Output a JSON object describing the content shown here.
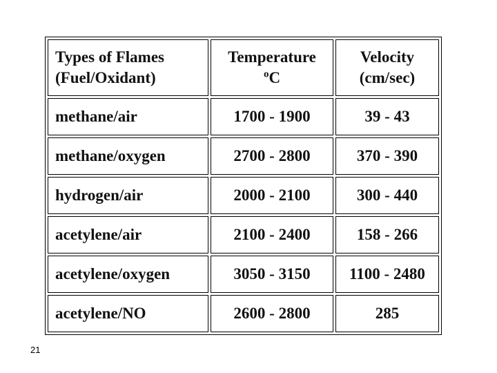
{
  "table": {
    "header": [
      {
        "line1": "Types of Flames",
        "line2": "(Fuel/Oxidant)"
      },
      {
        "line1": "Temperature",
        "sup": "o",
        "line2": "C"
      },
      {
        "line1": "Velocity",
        "line2": "(cm/sec)"
      }
    ],
    "rows": [
      [
        "methane/air",
        "1700 - 1900",
        "39 - 43"
      ],
      [
        "methane/oxygen",
        "2700 - 2800",
        "370 - 390"
      ],
      [
        "hydrogen/air",
        "2000 - 2100",
        "300 - 440"
      ],
      [
        "acetylene/air",
        "2100 - 2400",
        "158 - 266"
      ],
      [
        "acetylene/oxygen",
        "3050 - 3150",
        "1100 - 2480"
      ],
      [
        "acetylene/NO",
        "2600 - 2800",
        "285"
      ]
    ]
  },
  "page_number": "21"
}
